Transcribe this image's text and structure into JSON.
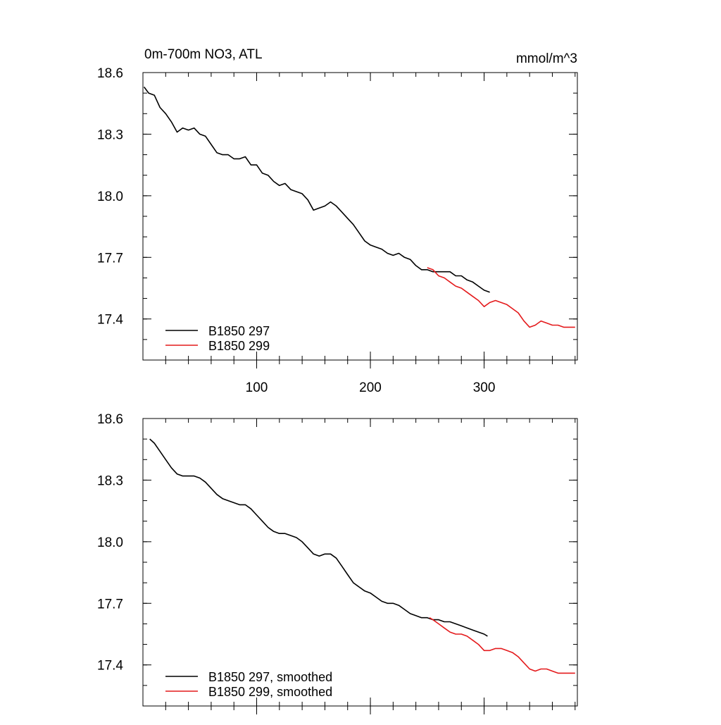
{
  "chart_data": [
    {
      "type": "line",
      "title": "0m-700m NO3, ATL",
      "units": "mmol/m^3",
      "xlim": [
        0,
        382
      ],
      "ylim": [
        17.2,
        18.6
      ],
      "x_ticks": [
        100,
        200,
        300
      ],
      "x_tick_labels": [
        "100",
        "200",
        "300"
      ],
      "y_ticks": [
        17.4,
        17.7,
        18.0,
        18.3,
        18.6
      ],
      "y_tick_labels": [
        "17.4",
        "17.7",
        "18.0",
        "18.3",
        "18.6"
      ],
      "legend_position": "bottom-left",
      "series": [
        {
          "name": "B1850 297",
          "color": "#000000",
          "x": [
            1,
            5,
            10,
            15,
            20,
            25,
            30,
            35,
            40,
            45,
            50,
            55,
            60,
            65,
            70,
            75,
            80,
            85,
            90,
            95,
            100,
            105,
            110,
            115,
            120,
            125,
            130,
            135,
            140,
            145,
            150,
            155,
            160,
            165,
            170,
            175,
            180,
            185,
            190,
            195,
            200,
            205,
            210,
            215,
            220,
            225,
            230,
            235,
            240,
            245,
            250,
            255,
            260,
            265,
            270,
            275,
            280,
            285,
            290,
            295,
            300,
            305
          ],
          "y": [
            18.53,
            18.5,
            18.49,
            18.43,
            18.4,
            18.36,
            18.31,
            18.33,
            18.32,
            18.33,
            18.3,
            18.29,
            18.25,
            18.21,
            18.2,
            18.2,
            18.18,
            18.18,
            18.19,
            18.15,
            18.15,
            18.11,
            18.1,
            18.07,
            18.05,
            18.06,
            18.03,
            18.02,
            18.01,
            17.98,
            17.93,
            17.94,
            17.95,
            17.97,
            17.95,
            17.92,
            17.89,
            17.86,
            17.82,
            17.78,
            17.76,
            17.75,
            17.74,
            17.72,
            17.71,
            17.72,
            17.7,
            17.69,
            17.66,
            17.64,
            17.64,
            17.63,
            17.63,
            17.63,
            17.63,
            17.61,
            17.61,
            17.59,
            17.58,
            17.56,
            17.54,
            17.53
          ]
        },
        {
          "name": "B1850 299",
          "color": "#e41a1c",
          "x": [
            250,
            255,
            260,
            265,
            270,
            275,
            280,
            285,
            290,
            295,
            300,
            305,
            310,
            315,
            320,
            325,
            330,
            335,
            340,
            345,
            350,
            355,
            360,
            365,
            370,
            375,
            380
          ],
          "y": [
            17.65,
            17.64,
            17.61,
            17.6,
            17.58,
            17.56,
            17.55,
            17.53,
            17.51,
            17.49,
            17.46,
            17.48,
            17.49,
            17.48,
            17.47,
            17.45,
            17.43,
            17.39,
            17.36,
            17.37,
            17.39,
            17.38,
            17.37,
            17.37,
            17.36,
            17.36,
            17.36
          ]
        }
      ]
    },
    {
      "type": "line",
      "xlim": [
        0,
        382
      ],
      "ylim": [
        17.2,
        18.6
      ],
      "x_ticks": [
        100,
        200,
        300
      ],
      "y_ticks": [
        17.4,
        17.7,
        18.0,
        18.3,
        18.6
      ],
      "y_tick_labels": [
        "17.4",
        "17.7",
        "18.0",
        "18.3",
        "18.6"
      ],
      "legend_position": "bottom-left",
      "series": [
        {
          "name": "B1850 297, smoothed",
          "color": "#000000",
          "x": [
            6,
            10,
            15,
            20,
            25,
            30,
            35,
            40,
            45,
            50,
            55,
            60,
            65,
            70,
            75,
            80,
            85,
            90,
            95,
            100,
            105,
            110,
            115,
            120,
            125,
            130,
            135,
            140,
            145,
            150,
            155,
            160,
            165,
            170,
            175,
            180,
            185,
            190,
            195,
            200,
            205,
            210,
            215,
            220,
            225,
            230,
            235,
            240,
            245,
            250,
            255,
            260,
            265,
            270,
            275,
            280,
            285,
            290,
            295,
            300,
            303
          ],
          "y": [
            18.5,
            18.48,
            18.44,
            18.4,
            18.36,
            18.33,
            18.32,
            18.32,
            18.32,
            18.31,
            18.29,
            18.26,
            18.23,
            18.21,
            18.2,
            18.19,
            18.18,
            18.18,
            18.16,
            18.13,
            18.1,
            18.07,
            18.05,
            18.04,
            18.04,
            18.03,
            18.02,
            18.0,
            17.97,
            17.94,
            17.93,
            17.94,
            17.94,
            17.92,
            17.88,
            17.84,
            17.8,
            17.78,
            17.76,
            17.75,
            17.73,
            17.71,
            17.7,
            17.7,
            17.69,
            17.67,
            17.65,
            17.64,
            17.63,
            17.63,
            17.62,
            17.62,
            17.61,
            17.61,
            17.6,
            17.59,
            17.58,
            17.57,
            17.56,
            17.55,
            17.54
          ]
        },
        {
          "name": "B1850 299, smoothed",
          "color": "#e41a1c",
          "x": [
            252,
            255,
            260,
            265,
            270,
            275,
            280,
            285,
            290,
            295,
            300,
            305,
            310,
            315,
            320,
            325,
            330,
            335,
            340,
            345,
            350,
            355,
            360,
            365,
            370,
            375,
            380
          ],
          "y": [
            17.63,
            17.62,
            17.6,
            17.58,
            17.56,
            17.55,
            17.55,
            17.54,
            17.52,
            17.5,
            17.47,
            17.47,
            17.48,
            17.48,
            17.47,
            17.46,
            17.44,
            17.41,
            17.38,
            17.37,
            17.38,
            17.38,
            17.37,
            17.36,
            17.36,
            17.36,
            17.36
          ]
        }
      ]
    }
  ]
}
